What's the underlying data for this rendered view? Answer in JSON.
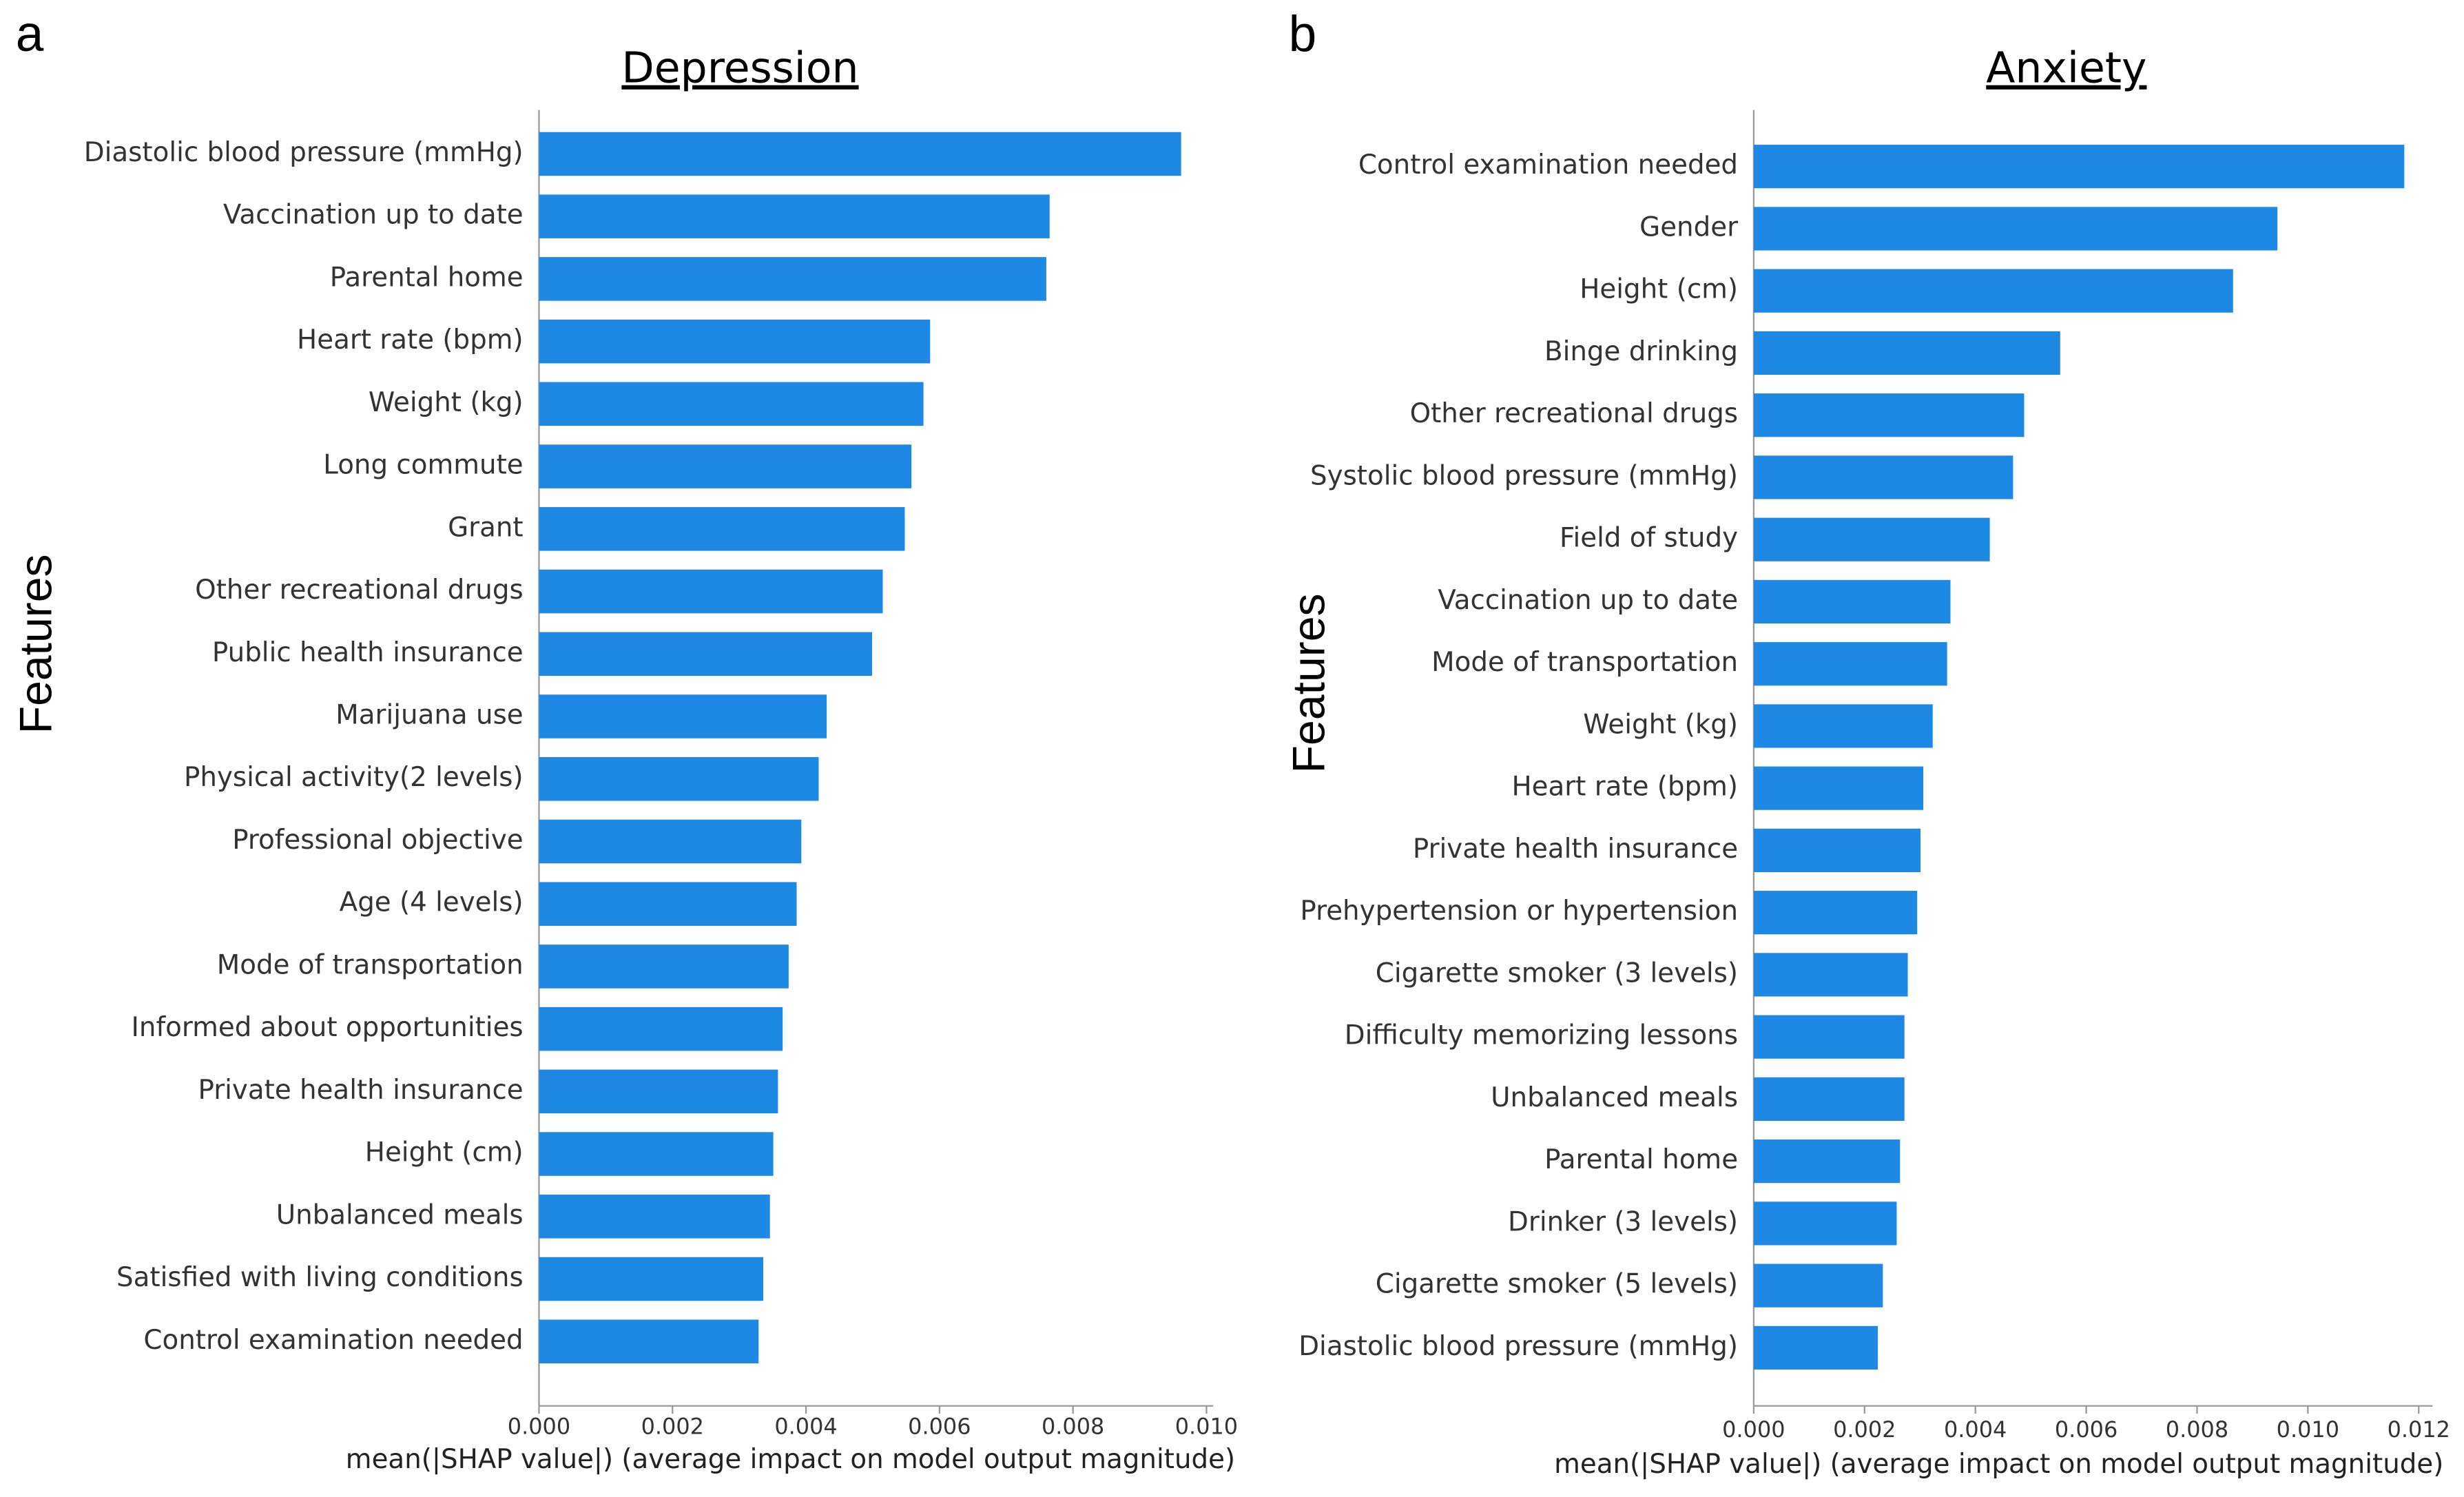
{
  "chart_data": [
    {
      "type": "bar",
      "orientation": "horizontal",
      "panel_label": "a",
      "title": "Depression",
      "ylabel": "Features",
      "xlabel": "mean(|SHAP value|) (average impact on model output magnitude)",
      "categories": [
        "Diastolic blood pressure (mmHg)",
        "Vaccination up to date",
        "Parental home",
        "Heart rate (bpm)",
        "Weight (kg)",
        "Long commute",
        "Grant",
        "Other recreational drugs",
        "Public health insurance",
        "Marijuana use",
        "Physical activity(2 levels)",
        "Professional objective",
        "Age (4 levels)",
        "Mode of transportation",
        "Informed about opportunities",
        "Private health insurance",
        "Height (cm)",
        "Unbalanced meals",
        "Satisfied with living conditions",
        "Control examination needed"
      ],
      "values": [
        0.00962,
        0.00765,
        0.0076,
        0.00586,
        0.00576,
        0.00558,
        0.00548,
        0.00515,
        0.00499,
        0.00431,
        0.00419,
        0.00393,
        0.00386,
        0.00374,
        0.00365,
        0.00358,
        0.00351,
        0.00346,
        0.00336,
        0.00329
      ],
      "color": "#1e88e5",
      "xlim": [
        0,
        0.0101
      ],
      "xticks": [
        {
          "value": 0,
          "label": "0.000"
        },
        {
          "value": 0.002,
          "label": "0.002"
        },
        {
          "value": 0.004,
          "label": "0.004"
        },
        {
          "value": 0.006,
          "label": "0.006"
        },
        {
          "value": 0.008,
          "label": "0.008"
        },
        {
          "value": 0.01,
          "label": "0.010"
        }
      ]
    },
    {
      "type": "bar",
      "orientation": "horizontal",
      "panel_label": "b",
      "title": "Anxiety",
      "ylabel": "Features",
      "xlabel": "mean(|SHAP value|) (average impact on model output magnitude)",
      "categories": [
        "Control examination needed",
        "Gender",
        "Height (cm)",
        "Binge drinking",
        "Other recreational drugs",
        "Systolic blood pressure (mmHg)",
        "Field of study",
        "Vaccination up to date",
        "Mode of transportation",
        "Weight (kg)",
        "Heart rate (bpm)",
        "Private health insurance",
        "Prehypertension or hypertension",
        "Cigarette smoker (3 levels)",
        "Difficulty memorizing lessons",
        "Unbalanced meals",
        "Parental home",
        "Drinker (3 levels)",
        "Cigarette smoker (5 levels)",
        "Diastolic blood pressure (mmHg)"
      ],
      "values": [
        0.01174,
        0.00945,
        0.00865,
        0.00553,
        0.00488,
        0.00468,
        0.00426,
        0.00355,
        0.00349,
        0.00323,
        0.00306,
        0.00301,
        0.00295,
        0.00278,
        0.00272,
        0.00272,
        0.00264,
        0.00258,
        0.00233,
        0.00224
      ],
      "color": "#1e88e5",
      "xlim": [
        0,
        0.01225
      ],
      "xticks": [
        {
          "value": 0,
          "label": "0.000"
        },
        {
          "value": 0.002,
          "label": "0.002"
        },
        {
          "value": 0.004,
          "label": "0.004"
        },
        {
          "value": 0.006,
          "label": "0.006"
        },
        {
          "value": 0.008,
          "label": "0.008"
        },
        {
          "value": 0.01,
          "label": "0.010"
        },
        {
          "value": 0.012,
          "label": "0.012"
        }
      ]
    }
  ]
}
